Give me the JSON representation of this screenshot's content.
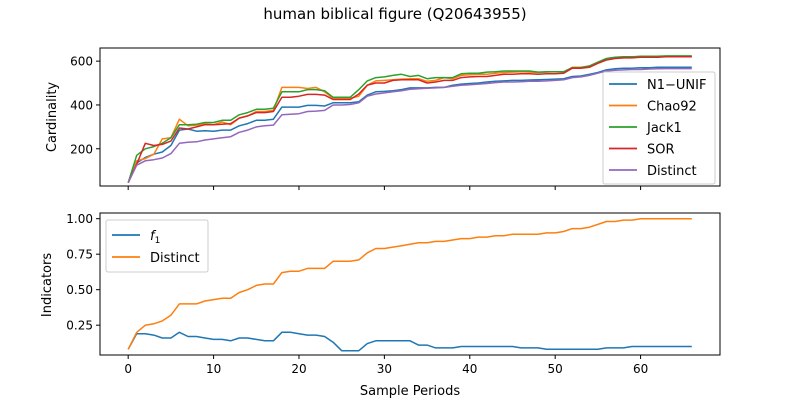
{
  "title": "human biblical figure (Q20643955)",
  "colors": {
    "blue": "#1f77b4",
    "orange": "#ff7f0e",
    "green": "#2ca02c",
    "red": "#d62728",
    "purple": "#9467bd"
  },
  "chart_data": [
    {
      "type": "line",
      "title": "human biblical figure (Q20643955)",
      "xlabel": "",
      "ylabel": "Cardinality",
      "xlim": [
        -3.3,
        69.3
      ],
      "ylim": [
        30,
        660
      ],
      "yticks": [
        200,
        400,
        600
      ],
      "xticks": [
        0,
        10,
        20,
        30,
        40,
        50,
        60
      ],
      "show_xticklabels": false,
      "legend_position": "right",
      "grid": false,
      "x": [
        0,
        1,
        2,
        3,
        4,
        5,
        6,
        7,
        8,
        9,
        10,
        11,
        12,
        13,
        14,
        15,
        16,
        17,
        18,
        19,
        20,
        21,
        22,
        23,
        24,
        25,
        26,
        27,
        28,
        29,
        30,
        31,
        32,
        33,
        34,
        35,
        36,
        37,
        38,
        39,
        40,
        41,
        42,
        43,
        44,
        45,
        46,
        47,
        48,
        49,
        50,
        51,
        52,
        53,
        54,
        55,
        56,
        57,
        58,
        59,
        60,
        61,
        62,
        63,
        64,
        65,
        66
      ],
      "series": [
        {
          "name": "N1−UNIF",
          "color": "#1f77b4",
          "values": [
            45,
            135,
            160,
            175,
            185,
            215,
            285,
            290,
            280,
            282,
            280,
            285,
            285,
            305,
            315,
            330,
            330,
            335,
            390,
            390,
            390,
            398,
            398,
            395,
            410,
            410,
            410,
            415,
            445,
            460,
            462,
            465,
            470,
            478,
            478,
            478,
            480,
            480,
            490,
            495,
            498,
            500,
            505,
            508,
            510,
            512,
            512,
            514,
            515,
            516,
            518,
            520,
            530,
            532,
            540,
            548,
            560,
            565,
            568,
            568,
            570,
            570,
            572,
            572,
            572,
            572,
            572
          ]
        },
        {
          "name": "Chao92",
          "color": "#ff7f0e",
          "values": [
            45,
            145,
            155,
            175,
            245,
            250,
            335,
            305,
            308,
            315,
            310,
            322,
            310,
            340,
            350,
            370,
            370,
            375,
            480,
            480,
            480,
            475,
            480,
            460,
            430,
            430,
            430,
            440,
            490,
            510,
            512,
            515,
            518,
            520,
            520,
            508,
            512,
            525,
            520,
            535,
            538,
            540,
            540,
            545,
            548,
            550,
            552,
            550,
            548,
            550,
            552,
            550,
            572,
            572,
            578,
            595,
            610,
            615,
            615,
            618,
            620,
            618,
            620,
            622,
            622,
            622,
            620
          ]
        },
        {
          "name": "Jack1",
          "color": "#2ca02c",
          "values": [
            45,
            170,
            200,
            210,
            225,
            250,
            310,
            310,
            312,
            320,
            320,
            330,
            330,
            355,
            365,
            380,
            380,
            385,
            460,
            460,
            460,
            470,
            470,
            465,
            435,
            435,
            435,
            470,
            510,
            525,
            528,
            535,
            540,
            530,
            535,
            520,
            525,
            525,
            525,
            542,
            545,
            545,
            550,
            552,
            555,
            555,
            555,
            555,
            550,
            552,
            552,
            552,
            570,
            570,
            578,
            595,
            612,
            618,
            620,
            620,
            622,
            622,
            622,
            624,
            624,
            624,
            624
          ]
        },
        {
          "name": "SOR",
          "color": "#d62728",
          "values": [
            45,
            130,
            225,
            215,
            220,
            235,
            295,
            290,
            300,
            310,
            310,
            312,
            315,
            340,
            350,
            365,
            365,
            370,
            435,
            435,
            440,
            448,
            448,
            445,
            425,
            425,
            425,
            450,
            490,
            500,
            500,
            512,
            515,
            515,
            515,
            500,
            505,
            512,
            512,
            525,
            528,
            530,
            530,
            535,
            540,
            540,
            542,
            542,
            540,
            542,
            542,
            545,
            568,
            568,
            572,
            590,
            605,
            612,
            615,
            615,
            618,
            618,
            618,
            620,
            620,
            620,
            620
          ]
        },
        {
          "name": "Distinct",
          "color": "#9467bd",
          "values": [
            45,
            125,
            145,
            150,
            158,
            178,
            225,
            230,
            232,
            240,
            245,
            250,
            255,
            275,
            285,
            300,
            305,
            308,
            355,
            358,
            360,
            370,
            372,
            375,
            400,
            400,
            402,
            410,
            440,
            450,
            455,
            460,
            465,
            472,
            474,
            476,
            478,
            480,
            485,
            490,
            492,
            495,
            498,
            502,
            505,
            505,
            506,
            508,
            508,
            510,
            512,
            515,
            525,
            528,
            535,
            545,
            555,
            558,
            560,
            562,
            562,
            564,
            565,
            566,
            566,
            566,
            566
          ]
        }
      ]
    },
    {
      "type": "line",
      "xlabel": "Sample Periods",
      "ylabel": "Indicators",
      "xlim": [
        -3.3,
        69.3
      ],
      "ylim": [
        0.04,
        1.04
      ],
      "yticks": [
        0.25,
        0.5,
        0.75,
        1.0
      ],
      "ytick_labels": [
        "0.25",
        "0.50",
        "0.75",
        "1.00"
      ],
      "xticks": [
        0,
        10,
        20,
        30,
        40,
        50,
        60
      ],
      "xtick_labels": [
        "0",
        "10",
        "20",
        "30",
        "40",
        "50",
        "60"
      ],
      "legend_position": "upper left",
      "grid": false,
      "x": [
        0,
        1,
        2,
        3,
        4,
        5,
        6,
        7,
        8,
        9,
        10,
        11,
        12,
        13,
        14,
        15,
        16,
        17,
        18,
        19,
        20,
        21,
        22,
        23,
        24,
        25,
        26,
        27,
        28,
        29,
        30,
        31,
        32,
        33,
        34,
        35,
        36,
        37,
        38,
        39,
        40,
        41,
        42,
        43,
        44,
        45,
        46,
        47,
        48,
        49,
        50,
        51,
        52,
        53,
        54,
        55,
        56,
        57,
        58,
        59,
        60,
        61,
        62,
        63,
        64,
        65,
        66
      ],
      "series": [
        {
          "name": "f1",
          "color": "#1f77b4",
          "values": [
            0.08,
            0.19,
            0.19,
            0.18,
            0.16,
            0.16,
            0.2,
            0.17,
            0.17,
            0.16,
            0.15,
            0.15,
            0.14,
            0.16,
            0.16,
            0.15,
            0.14,
            0.14,
            0.2,
            0.2,
            0.19,
            0.18,
            0.18,
            0.17,
            0.13,
            0.07,
            0.07,
            0.07,
            0.12,
            0.14,
            0.14,
            0.14,
            0.14,
            0.14,
            0.11,
            0.11,
            0.09,
            0.09,
            0.09,
            0.1,
            0.1,
            0.1,
            0.1,
            0.1,
            0.1,
            0.1,
            0.09,
            0.09,
            0.09,
            0.08,
            0.08,
            0.08,
            0.08,
            0.08,
            0.08,
            0.08,
            0.09,
            0.09,
            0.09,
            0.1,
            0.1,
            0.1,
            0.1,
            0.1,
            0.1,
            0.1,
            0.1
          ]
        },
        {
          "name": "Distinct",
          "color": "#ff7f0e",
          "values": [
            0.08,
            0.2,
            0.25,
            0.26,
            0.28,
            0.32,
            0.4,
            0.4,
            0.4,
            0.42,
            0.43,
            0.44,
            0.44,
            0.48,
            0.5,
            0.53,
            0.54,
            0.54,
            0.62,
            0.63,
            0.63,
            0.65,
            0.65,
            0.65,
            0.7,
            0.7,
            0.7,
            0.71,
            0.76,
            0.79,
            0.79,
            0.8,
            0.81,
            0.82,
            0.83,
            0.83,
            0.84,
            0.84,
            0.85,
            0.86,
            0.86,
            0.87,
            0.87,
            0.88,
            0.88,
            0.89,
            0.89,
            0.89,
            0.89,
            0.9,
            0.9,
            0.91,
            0.93,
            0.93,
            0.94,
            0.96,
            0.98,
            0.98,
            0.99,
            0.99,
            1.0,
            1.0,
            1.0,
            1.0,
            1.0,
            1.0,
            1.0
          ]
        }
      ]
    }
  ]
}
